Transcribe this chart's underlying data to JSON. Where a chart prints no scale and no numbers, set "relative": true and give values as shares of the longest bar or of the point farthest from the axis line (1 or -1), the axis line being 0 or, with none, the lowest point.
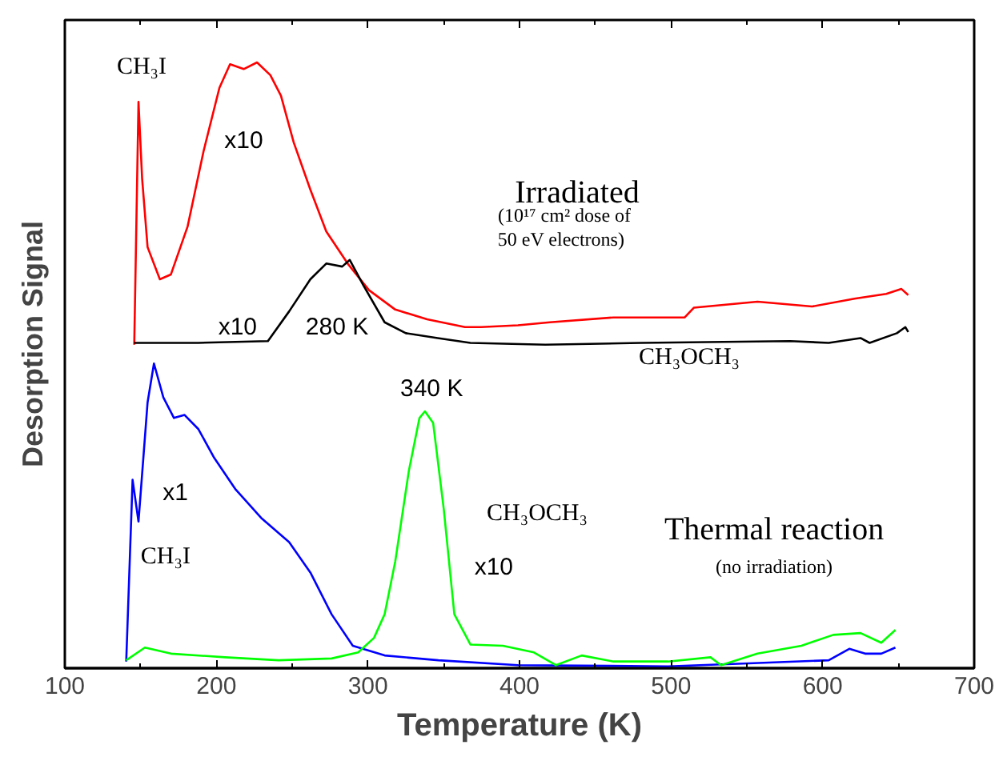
{
  "chart_data": {
    "type": "line",
    "relative": true,
    "xlabel": "Temperature (K)",
    "ylabel": "Desorption Signal",
    "xlim": [
      100,
      700
    ],
    "xticks": [
      100,
      200,
      300,
      400,
      500,
      600,
      700
    ],
    "line_style": "solid",
    "series": [
      {
        "color": "#ff0000",
        "x": [
          145.8,
          148.6,
          151,
          154.6,
          162.7,
          170,
          181,
          191.5,
          202,
          209,
          218,
          226.8,
          235.6,
          242.6,
          251,
          262,
          272.5,
          286.6,
          300.7,
          318,
          339,
          364,
          374.6,
          399,
          420,
          462,
          509,
          515,
          557,
          593,
          621,
          642,
          652,
          656.5
        ],
        "values": [
          0.534,
          0.935,
          0.808,
          0.695,
          0.642,
          0.65,
          0.729,
          0.853,
          0.958,
          0.997,
          0.989,
          1.0,
          0.979,
          0.945,
          0.868,
          0.79,
          0.721,
          0.668,
          0.624,
          0.592,
          0.576,
          0.563,
          0.563,
          0.566,
          0.571,
          0.579,
          0.579,
          0.595,
          0.605,
          0.597,
          0.61,
          0.618,
          0.626,
          0.616
        ]
      },
      {
        "color": "#000000",
        "x": [
          145.8,
          188,
          234,
          248,
          262,
          272.5,
          283,
          288,
          297,
          311,
          325,
          346,
          367.6,
          417,
          480,
          578.5,
          604,
          625,
          631,
          649,
          654.6,
          656.5
        ],
        "values": [
          0.537,
          0.537,
          0.54,
          0.589,
          0.642,
          0.668,
          0.663,
          0.674,
          0.632,
          0.571,
          0.553,
          0.545,
          0.537,
          0.534,
          0.537,
          0.54,
          0.537,
          0.545,
          0.537,
          0.553,
          0.563,
          0.555
        ]
      },
      {
        "color": "#0000ff",
        "x": [
          140.5,
          144.7,
          148.6,
          154.6,
          158.8,
          165,
          172,
          179,
          188,
          198.6,
          212.7,
          230,
          248,
          262,
          276,
          290,
          311,
          346.5,
          399,
          498,
          551,
          604,
          617.6,
          628,
          638.7,
          648
        ],
        "values": [
          0.011,
          0.311,
          0.242,
          0.439,
          0.503,
          0.447,
          0.413,
          0.418,
          0.395,
          0.347,
          0.295,
          0.247,
          0.208,
          0.158,
          0.089,
          0.037,
          0.021,
          0.013,
          0.005,
          0.003,
          0.008,
          0.013,
          0.032,
          0.024,
          0.024,
          0.034
        ]
      },
      {
        "color": "#00ff00",
        "x": [
          140.5,
          152.8,
          170,
          205.6,
          241,
          276,
          293.6,
          304,
          311,
          318,
          327,
          334,
          337.6,
          343,
          350,
          357,
          367.6,
          389,
          409.5,
          424,
          441,
          462,
          498,
          526,
          533,
          557,
          586,
          607,
          625,
          638.7,
          648
        ],
        "values": [
          0.013,
          0.034,
          0.024,
          0.018,
          0.013,
          0.016,
          0.026,
          0.05,
          0.089,
          0.176,
          0.326,
          0.413,
          0.424,
          0.405,
          0.263,
          0.089,
          0.039,
          0.037,
          0.026,
          0.005,
          0.021,
          0.011,
          0.011,
          0.018,
          0.005,
          0.024,
          0.037,
          0.055,
          0.058,
          0.042,
          0.063
        ]
      }
    ],
    "annotations": [
      "CH₃I",
      "x10",
      "Irradiated",
      "(10¹⁷ cm² dose of",
      "50 eV electrons)",
      "x10",
      "280 K",
      "CH₃OCH₃",
      "340 K",
      "x1",
      "CH₃I",
      "CH₃OCH₃",
      "x10",
      "Thermal reaction",
      "(no irradiation)"
    ]
  }
}
